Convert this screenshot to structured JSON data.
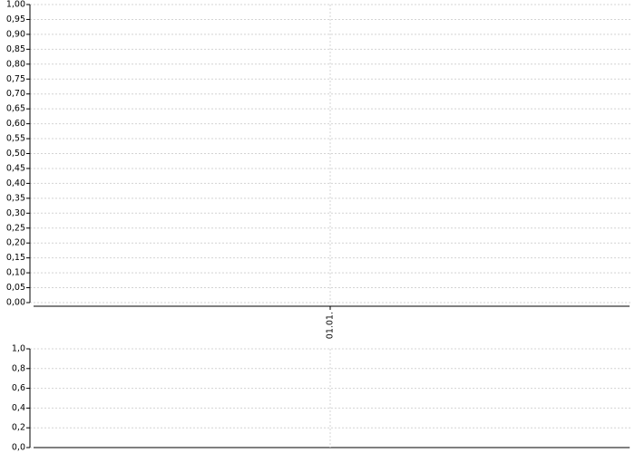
{
  "chart_data": [
    {
      "type": "line",
      "categories": [
        "01.01."
      ],
      "series": [],
      "grid": true,
      "ylim": [
        0,
        1
      ],
      "yticks": [
        {
          "value": 0,
          "label": "0,00"
        },
        {
          "value": 0.05,
          "label": "0,05"
        },
        {
          "value": 0.1,
          "label": "0,10"
        },
        {
          "value": 0.15,
          "label": "0,15"
        },
        {
          "value": 0.2,
          "label": "0,20"
        },
        {
          "value": 0.25,
          "label": "0,25"
        },
        {
          "value": 0.3,
          "label": "0,30"
        },
        {
          "value": 0.35,
          "label": "0,35"
        },
        {
          "value": 0.4,
          "label": "0,40"
        },
        {
          "value": 0.45,
          "label": "0,45"
        },
        {
          "value": 0.5,
          "label": "0,50"
        },
        {
          "value": 0.55,
          "label": "0,55"
        },
        {
          "value": 0.6,
          "label": "0,60"
        },
        {
          "value": 0.65,
          "label": "0,65"
        },
        {
          "value": 0.7,
          "label": "0,70"
        },
        {
          "value": 0.75,
          "label": "0,75"
        },
        {
          "value": 0.8,
          "label": "0,80"
        },
        {
          "value": 0.85,
          "label": "0,85"
        },
        {
          "value": 0.9,
          "label": "0,90"
        },
        {
          "value": 0.95,
          "label": "0,95"
        },
        {
          "value": 1,
          "label": "1,00"
        }
      ]
    },
    {
      "type": "line",
      "categories": [
        null
      ],
      "series": [],
      "grid": true,
      "ylim": [
        0,
        1
      ],
      "yticks": [
        {
          "value": 0,
          "label": "0,0"
        },
        {
          "value": 0.2,
          "label": "0,2"
        },
        {
          "value": 0.4,
          "label": "0,4"
        },
        {
          "value": 0.6,
          "label": "0,6"
        },
        {
          "value": 0.8,
          "label": "0,8"
        },
        {
          "value": 1,
          "label": "1,0"
        }
      ]
    }
  ]
}
